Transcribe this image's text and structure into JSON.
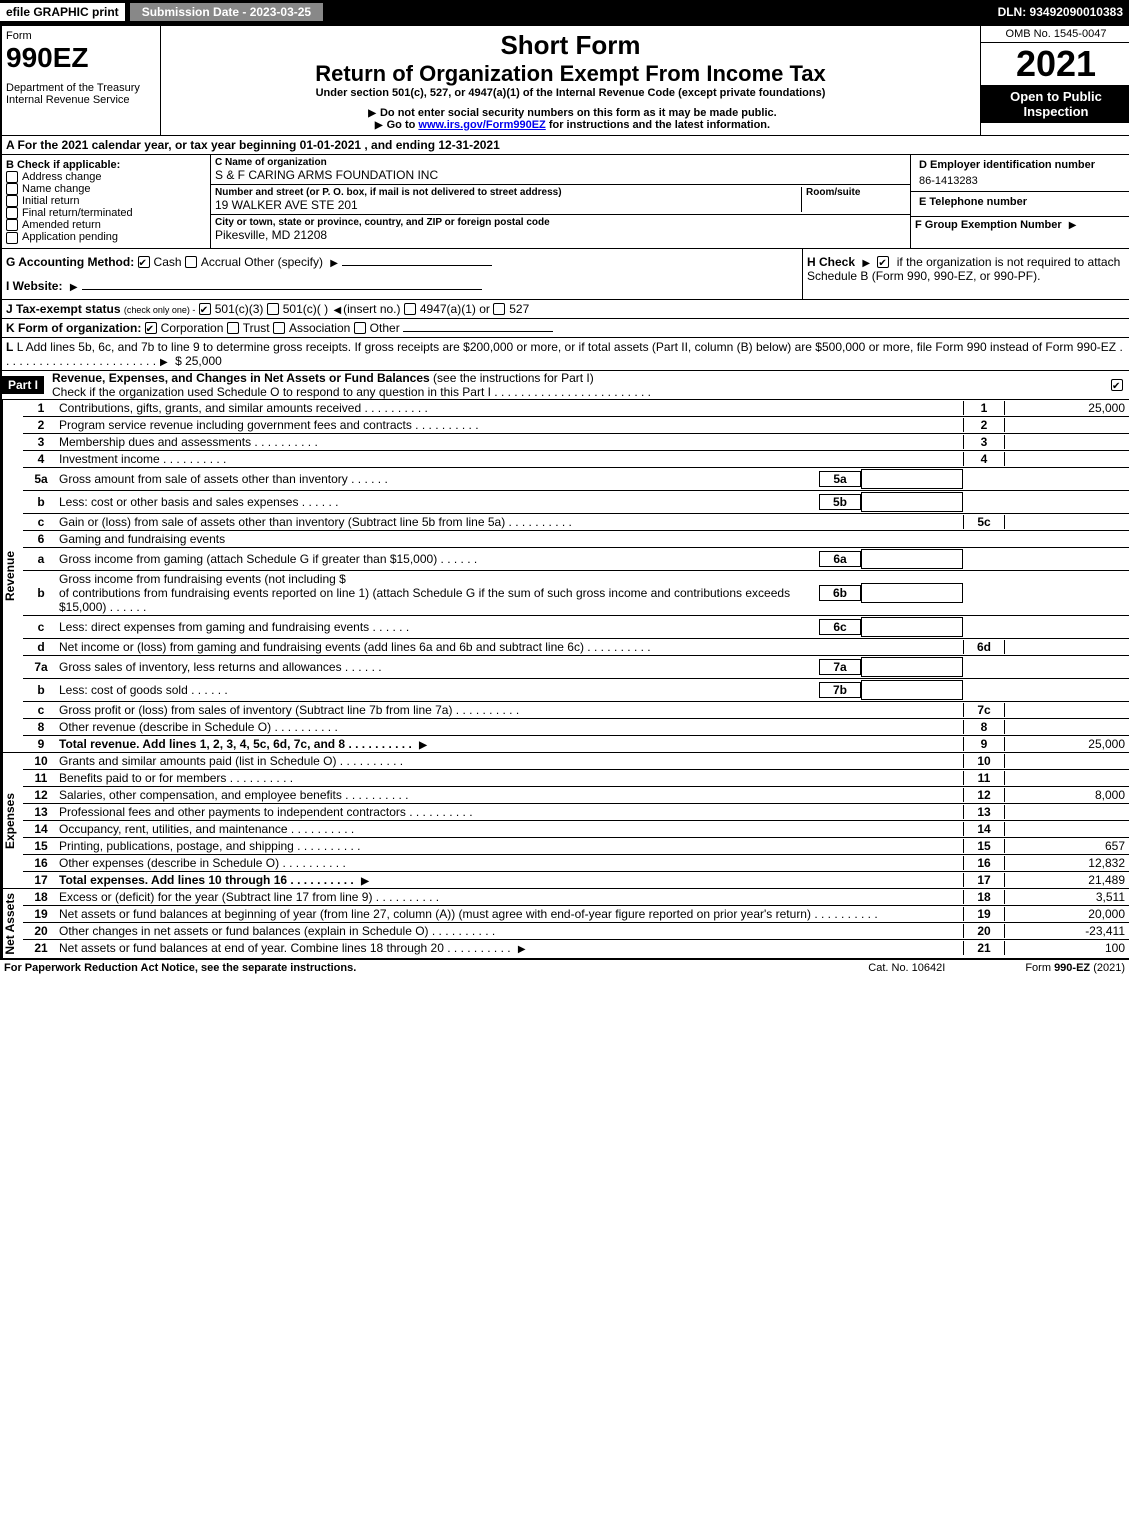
{
  "topbar": {
    "efile": "efile GRAPHIC print",
    "submission": "Submission Date - 2023-03-25",
    "dln": "DLN: 93492090010383"
  },
  "header": {
    "form_word": "Form",
    "form_num": "990EZ",
    "dept": "Department of the Treasury\nInternal Revenue Service",
    "short": "Short Form",
    "title": "Return of Organization Exempt From Income Tax",
    "subtitle": "Under section 501(c), 527, or 4947(a)(1) of the Internal Revenue Code (except private foundations)",
    "warn": "Do not enter social security numbers on this form as it may be made public.",
    "goto_pre": "Go to ",
    "goto_link": "www.irs.gov/Form990EZ",
    "goto_post": " for instructions and the latest information.",
    "omb": "OMB No. 1545-0047",
    "year": "2021",
    "inspect": "Open to Public Inspection"
  },
  "section_a": "A  For the 2021 calendar year, or tax year beginning 01-01-2021 , and ending 12-31-2021",
  "box_b": {
    "title": "B  Check if applicable:",
    "items": [
      "Address change",
      "Name change",
      "Initial return",
      "Final return/terminated",
      "Amended return",
      "Application pending"
    ]
  },
  "box_c": {
    "name_lbl": "C Name of organization",
    "name": "S & F CARING ARMS FOUNDATION INC",
    "street_lbl": "Number and street (or P. O. box, if mail is not delivered to street address)",
    "room_lbl": "Room/suite",
    "street": "19 WALKER AVE STE 201",
    "city_lbl": "City or town, state or province, country, and ZIP or foreign postal code",
    "city": "Pikesville, MD  21208"
  },
  "box_d": {
    "ein_lbl": "D Employer identification number",
    "ein": "86-1413283",
    "tel_lbl": "E Telephone number",
    "tel": "",
    "grp_lbl": "F Group Exemption Number"
  },
  "line_g": "G Accounting Method:",
  "line_g_opts": {
    "cash": "Cash",
    "accrual": "Accrual",
    "other": "Other (specify)"
  },
  "line_h": "H  Check",
  "line_h_post": "if the organization is not required to attach Schedule B (Form 990, 990-EZ, or 990-PF).",
  "line_i": "I Website:",
  "line_j": "J Tax-exempt status",
  "line_j_sub": "(check only one) -",
  "line_j_opts": {
    "a": "501(c)(3)",
    "b": "501(c)(  )",
    "c": "(insert no.)",
    "d": "4947(a)(1) or",
    "e": "527"
  },
  "line_k": "K Form of organization:",
  "line_k_opts": {
    "corp": "Corporation",
    "trust": "Trust",
    "assoc": "Association",
    "other": "Other"
  },
  "line_l": "L Add lines 5b, 6c, and 7b to line 9 to determine gross receipts. If gross receipts are $200,000 or more, or if total assets (Part II, column (B) below) are $500,000 or more, file Form 990 instead of Form 990-EZ",
  "line_l_val": "$ 25,000",
  "part1": {
    "label": "Part I",
    "title": "Revenue, Expenses, and Changes in Net Assets or Fund Balances",
    "instr": "(see the instructions for Part I)",
    "check": "Check if the organization used Schedule O to respond to any question in this Part I"
  },
  "sections": {
    "revenue": "Revenue",
    "expenses": "Expenses",
    "netassets": "Net Assets"
  },
  "lines": {
    "1": {
      "n": "1",
      "d": "Contributions, gifts, grants, and similar amounts received",
      "c": "1",
      "v": "25,000"
    },
    "2": {
      "n": "2",
      "d": "Program service revenue including government fees and contracts",
      "c": "2",
      "v": ""
    },
    "3": {
      "n": "3",
      "d": "Membership dues and assessments",
      "c": "3",
      "v": ""
    },
    "4": {
      "n": "4",
      "d": "Investment income",
      "c": "4",
      "v": ""
    },
    "5a": {
      "n": "5a",
      "d": "Gross amount from sale of assets other than inventory",
      "sc": "5a"
    },
    "5b": {
      "n": "b",
      "d": "Less: cost or other basis and sales expenses",
      "sc": "5b"
    },
    "5c": {
      "n": "c",
      "d": "Gain or (loss) from sale of assets other than inventory (Subtract line 5b from line 5a)",
      "c": "5c",
      "v": ""
    },
    "6": {
      "n": "6",
      "d": "Gaming and fundraising events"
    },
    "6a": {
      "n": "a",
      "d": "Gross income from gaming (attach Schedule G if greater than $15,000)",
      "sc": "6a"
    },
    "6b": {
      "n": "b",
      "d": "Gross income from fundraising events (not including $",
      "d2": "of contributions from fundraising events reported on line 1) (attach Schedule G if the sum of such gross income and contributions exceeds $15,000)",
      "sc": "6b"
    },
    "6c": {
      "n": "c",
      "d": "Less: direct expenses from gaming and fundraising events",
      "sc": "6c"
    },
    "6d": {
      "n": "d",
      "d": "Net income or (loss) from gaming and fundraising events (add lines 6a and 6b and subtract line 6c)",
      "c": "6d",
      "v": ""
    },
    "7a": {
      "n": "7a",
      "d": "Gross sales of inventory, less returns and allowances",
      "sc": "7a"
    },
    "7b": {
      "n": "b",
      "d": "Less: cost of goods sold",
      "sc": "7b"
    },
    "7c": {
      "n": "c",
      "d": "Gross profit or (loss) from sales of inventory (Subtract line 7b from line 7a)",
      "c": "7c",
      "v": ""
    },
    "8": {
      "n": "8",
      "d": "Other revenue (describe in Schedule O)",
      "c": "8",
      "v": ""
    },
    "9": {
      "n": "9",
      "d": "Total revenue. Add lines 1, 2, 3, 4, 5c, 6d, 7c, and 8",
      "c": "9",
      "v": "25,000",
      "bold": true,
      "arrow": true
    },
    "10": {
      "n": "10",
      "d": "Grants and similar amounts paid (list in Schedule O)",
      "c": "10",
      "v": ""
    },
    "11": {
      "n": "11",
      "d": "Benefits paid to or for members",
      "c": "11",
      "v": ""
    },
    "12": {
      "n": "12",
      "d": "Salaries, other compensation, and employee benefits",
      "c": "12",
      "v": "8,000"
    },
    "13": {
      "n": "13",
      "d": "Professional fees and other payments to independent contractors",
      "c": "13",
      "v": ""
    },
    "14": {
      "n": "14",
      "d": "Occupancy, rent, utilities, and maintenance",
      "c": "14",
      "v": ""
    },
    "15": {
      "n": "15",
      "d": "Printing, publications, postage, and shipping",
      "c": "15",
      "v": "657"
    },
    "16": {
      "n": "16",
      "d": "Other expenses (describe in Schedule O)",
      "c": "16",
      "v": "12,832"
    },
    "17": {
      "n": "17",
      "d": "Total expenses. Add lines 10 through 16",
      "c": "17",
      "v": "21,489",
      "bold": true,
      "arrow": true
    },
    "18": {
      "n": "18",
      "d": "Excess or (deficit) for the year (Subtract line 17 from line 9)",
      "c": "18",
      "v": "3,511"
    },
    "19": {
      "n": "19",
      "d": "Net assets or fund balances at beginning of year (from line 27, column (A)) (must agree with end-of-year figure reported on prior year's return)",
      "c": "19",
      "v": "20,000"
    },
    "20": {
      "n": "20",
      "d": "Other changes in net assets or fund balances (explain in Schedule O)",
      "c": "20",
      "v": "-23,411"
    },
    "21": {
      "n": "21",
      "d": "Net assets or fund balances at end of year. Combine lines 18 through 20",
      "c": "21",
      "v": "100",
      "arrow": true
    }
  },
  "footer": {
    "left": "For Paperwork Reduction Act Notice, see the separate instructions.",
    "mid": "Cat. No. 10642I",
    "right_pre": "Form ",
    "right_form": "990-EZ",
    "right_post": " (2021)"
  }
}
